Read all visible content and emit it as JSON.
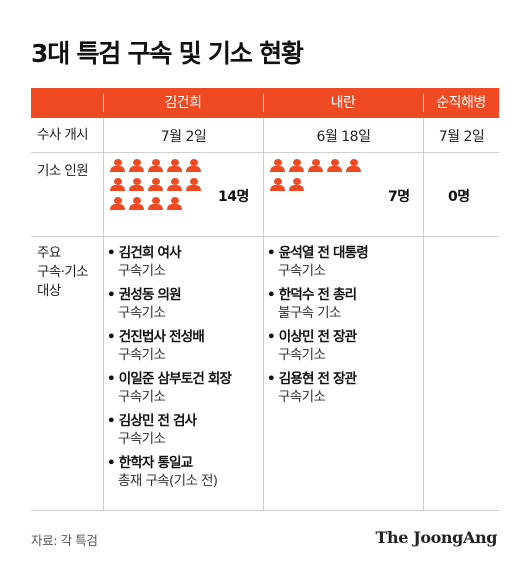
{
  "title": "3대 특검 구속 및 기소 현황",
  "columns": [
    "김건희",
    "내란",
    "순직해병"
  ],
  "rows": {
    "start": {
      "label": "수사 개시",
      "values": [
        "7월 2일",
        "6월 18일",
        "7월 2일"
      ]
    },
    "indicted": {
      "label": "기소 인원",
      "counts": [
        14,
        7,
        0
      ],
      "count_labels": [
        "14명",
        "7명",
        "0명"
      ],
      "icon": "person-icon",
      "icon_color": "#f04a23"
    },
    "targets": {
      "label_lines": [
        "주요",
        "구속·기소",
        "대상"
      ],
      "kimkeonhee": [
        {
          "name": "김건희 여사",
          "status": "구속기소"
        },
        {
          "name": "권성동 의원",
          "status": "구속기소"
        },
        {
          "name": "건진법사 전성배",
          "status": "구속기소"
        },
        {
          "name": "이일준 삼부토건 회장",
          "status": "구속기소"
        },
        {
          "name": "김상민 전 검사",
          "status": "구속기소"
        },
        {
          "name": "한학자 통일교",
          "status": "총재 구속(기소 전)"
        }
      ],
      "insurrection": [
        {
          "name": "윤석열 전 대통령",
          "status": "구속기소"
        },
        {
          "name": "한덕수 전 총리",
          "status": "불구속 기소"
        },
        {
          "name": "이상민 전 장관",
          "status": "구속기소"
        },
        {
          "name": "김용현 전 장관",
          "status": "구속기소"
        }
      ]
    }
  },
  "footer": {
    "source": "자료: 각 특검",
    "logo": "The JoongAng"
  },
  "accent_color": "#f04a23"
}
